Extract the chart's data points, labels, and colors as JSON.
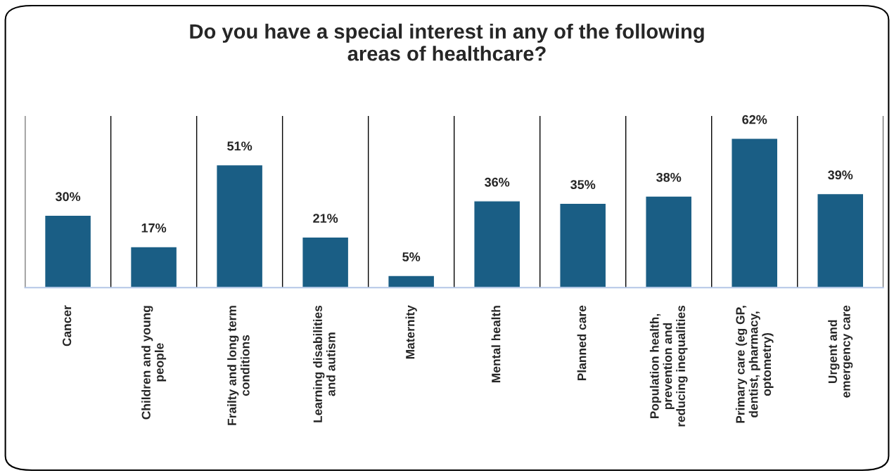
{
  "chart_data": {
    "type": "bar",
    "title": "Do you have a special interest in any of the following\nareas of healthcare?",
    "categories": [
      "Cancer",
      "Children and young\npeople",
      "Frailty and long term\nconditions",
      "Learning disabilities\nand autism",
      "Maternity",
      "Mental health",
      "Planned care",
      "Population health,\nprevention and\nreducing inequalities",
      "Primary care (eg GP,\ndentist, pharmacy,\noptometry)",
      "Urgent and\nemergency care"
    ],
    "values": [
      30,
      17,
      51,
      21,
      5,
      36,
      35,
      38,
      62,
      39
    ],
    "value_labels": [
      "30%",
      "17%",
      "51%",
      "21%",
      "5%",
      "36%",
      "35%",
      "38%",
      "62%",
      "39%"
    ],
    "color": "#1a5e85",
    "grid": "x",
    "legend": false
  }
}
